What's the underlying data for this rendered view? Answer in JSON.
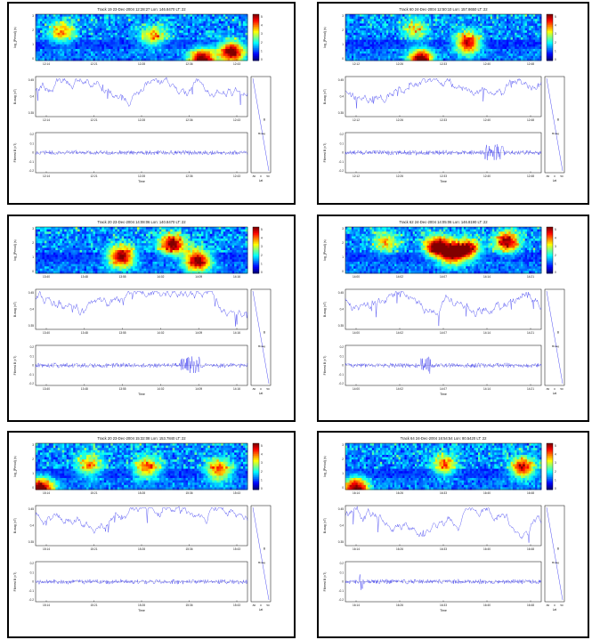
{
  "panels": [
    {
      "title": "Track 19 23-Dec-2004 12:28:27 Lon: 146.8470 LT: 22",
      "time_ticks": [
        "12:14",
        "12:21",
        "12:28",
        "12:36",
        "12:43"
      ],
      "bursts": [
        [
          0.78,
          0.96,
          1.0
        ],
        [
          0.92,
          0.78,
          1.0
        ],
        [
          0.12,
          0.35,
          0.55
        ],
        [
          0.55,
          0.45,
          0.55
        ]
      ],
      "spike": null
    },
    {
      "title": "Track 60 24-Dec-2004 12:50:10 Lon: 157.8650 LT: 22",
      "time_ticks": [
        "12:12",
        "12:26",
        "12:33",
        "12:40",
        "12:48"
      ],
      "bursts": [
        [
          0.38,
          0.96,
          1.0
        ],
        [
          0.62,
          0.6,
          0.9
        ],
        [
          0.35,
          0.3,
          0.45
        ]
      ],
      "spike": [
        0.76,
        0.1
      ]
    },
    {
      "title": "Track 20 23-Dec-2004 14:08:06 Lon: 140.8470 LT: 22",
      "time_ticks": [
        "13:40",
        "13:48",
        "13:55",
        "14:02",
        "14:09",
        "14:16"
      ],
      "bursts": [
        [
          0.76,
          0.7,
          1.0
        ],
        [
          0.4,
          0.62,
          1.0
        ],
        [
          0.64,
          0.35,
          0.95
        ]
      ],
      "spike": [
        0.73,
        0.09
      ]
    },
    {
      "title": "Track 62 24-Dec-2004 14:05:06 Lon: 146.8190 LT: 22",
      "time_ticks": [
        "14:00",
        "14:02",
        "14:07",
        "14:14",
        "14:21"
      ],
      "bursts": [
        [
          0.46,
          0.4,
          1.0
        ],
        [
          0.54,
          0.55,
          1.0
        ],
        [
          0.62,
          0.45,
          0.85
        ],
        [
          0.82,
          0.3,
          0.9
        ],
        [
          0.2,
          0.3,
          0.5
        ]
      ],
      "spike": [
        0.41,
        0.05
      ]
    },
    {
      "title": "Track 20 23-Dec-2004 15:32:08 Lon: 153.7840 LT: 22",
      "time_ticks": [
        "15:14",
        "15:21",
        "15:28",
        "15:36",
        "15:43"
      ],
      "bursts": [
        [
          0.02,
          0.95,
          1.0
        ],
        [
          0.86,
          0.55,
          0.7
        ],
        [
          0.52,
          0.5,
          0.7
        ],
        [
          0.25,
          0.45,
          0.55
        ]
      ],
      "spike": null
    },
    {
      "title": "Track 64 24-Dec-2004 16:54:54 Lon: 80.5420 LT: 22",
      "time_ticks": [
        "16:14",
        "16:26",
        "16:33",
        "16:40",
        "16:48"
      ],
      "bursts": [
        [
          0.05,
          0.95,
          1.0
        ],
        [
          0.9,
          0.5,
          0.85
        ],
        [
          0.5,
          0.45,
          0.6
        ]
      ],
      "spike": [
        0.08,
        0.02
      ]
    }
  ],
  "labels": {
    "freq_ylabel": "log_{Period} (s)",
    "bmag_ylabel": "B-mag (nT)",
    "filt_ylabel": "Filtered B (nT)",
    "xlabel": "Time",
    "lat_label": "Lat",
    "lat_ticks": [
      "-50",
      "0",
      "50"
    ],
    "colorbar_ticks": [
      "5",
      "4",
      "3",
      "2",
      "1",
      "0"
    ],
    "freq_yticks": [
      "0",
      "1",
      "2",
      "3"
    ],
    "bmag_yticks": [
      "0.45",
      "0.4",
      "0.35"
    ],
    "filt_yticks": [
      "0.2",
      "0.1",
      "0",
      "-0.1",
      "-0.2"
    ],
    "lat_point": "B",
    "lat_mark": "Bmag"
  },
  "chart_data": [
    {
      "type": "heatmap",
      "description_units": "wavelet power, log period",
      "colorbar": [
        0,
        5
      ]
    },
    {
      "type": "line",
      "series": [
        {
          "name": "B-mag",
          "values": []
        }
      ]
    },
    {
      "type": "line",
      "series": [
        {
          "name": "Filtered B",
          "values": []
        }
      ]
    }
  ],
  "colors": {
    "heat_low": "#0000b4",
    "heat_high": "#b40000",
    "trace": "#2222ee"
  }
}
